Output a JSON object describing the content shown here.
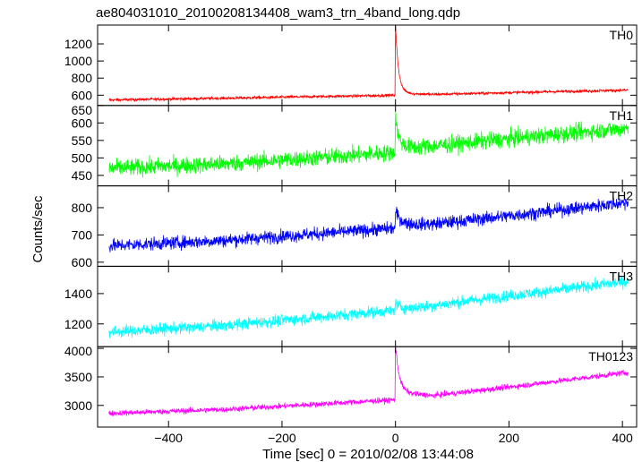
{
  "title": "ae804031010_20100208134408_wam3_trn_4band_long.qdp",
  "xlabel": "Time [sec] 0 = 2010/02/08 13:44:08",
  "ylabel": "Counts/sec",
  "chart_data": {
    "type": "line",
    "title": "ae804031010_20100208134408_wam3_trn_4band_long.qdp",
    "xlabel": "Time [sec] 0 = 2010/02/08 13:44:08",
    "ylabel": "Counts/sec",
    "xlim": [
      -525,
      425
    ],
    "xticks": [
      -400,
      -200,
      0,
      200,
      400
    ],
    "x_start": -505,
    "x_end": 410,
    "burst_time": 0,
    "panels": [
      {
        "name": "TH0",
        "color": "#ff0000",
        "ylim": [
          480,
          1420
        ],
        "yticks": [
          600,
          800,
          1000,
          1200
        ],
        "baseline": [
          [
            -505,
            545
          ],
          [
            -300,
            565
          ],
          [
            0,
            600
          ],
          [
            200,
            630
          ],
          [
            410,
            660
          ]
        ],
        "noise": 15,
        "peak": 1420,
        "post_burst": 650
      },
      {
        "name": "TH1",
        "color": "#00ff00",
        "ylim": [
          420,
          650
        ],
        "yticks": [
          450,
          500,
          550,
          600,
          650
        ],
        "baseline": [
          [
            -505,
            470
          ],
          [
            -300,
            483
          ],
          [
            -5,
            515
          ],
          [
            10,
            525
          ],
          [
            200,
            555
          ],
          [
            410,
            585
          ]
        ],
        "noise": 22,
        "peak": 615,
        "post_burst": 540
      },
      {
        "name": "TH2",
        "color": "#0000ff",
        "ylim": [
          585,
          880
        ],
        "yticks": [
          600,
          700,
          800
        ],
        "baseline": [
          [
            -505,
            660
          ],
          [
            -300,
            680
          ],
          [
            0,
            725
          ],
          [
            200,
            770
          ],
          [
            410,
            820
          ]
        ],
        "noise": 22,
        "peak": 780,
        "post_burst": 760
      },
      {
        "name": "TH3",
        "color": "#00ffff",
        "ylim": [
          1050,
          1580
        ],
        "yticks": [
          1200,
          1400
        ],
        "baseline": [
          [
            -505,
            1145
          ],
          [
            -300,
            1190
          ],
          [
            0,
            1290
          ],
          [
            200,
            1385
          ],
          [
            410,
            1480
          ]
        ],
        "noise": 35,
        "peak": 1340,
        "post_burst": 1310
      },
      {
        "name": "TH0123",
        "color": "#ff00ff",
        "ylim": [
          2620,
          4030
        ],
        "yticks": [
          3000,
          3500,
          4000
        ],
        "baseline": [
          [
            -505,
            2860
          ],
          [
            -300,
            2930
          ],
          [
            0,
            3100
          ],
          [
            200,
            3320
          ],
          [
            410,
            3580
          ]
        ],
        "noise": 45,
        "peak": 4030,
        "post_burst": 3380
      }
    ]
  }
}
